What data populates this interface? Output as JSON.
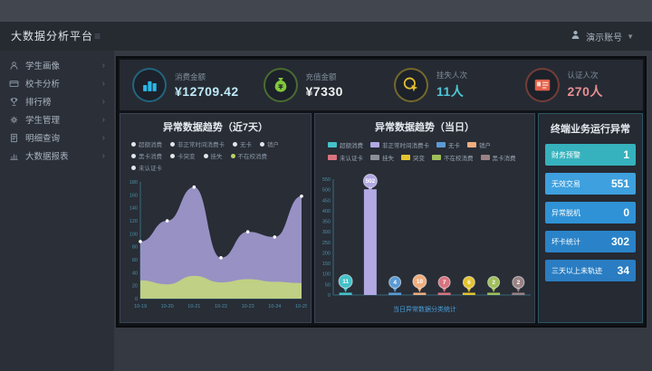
{
  "header": {
    "user_name": "演示账号"
  },
  "sidebar": {
    "title": "大数据分析平台",
    "items": [
      {
        "label": "学生画像",
        "icon": "person"
      },
      {
        "label": "校卡分析",
        "icon": "card"
      },
      {
        "label": "排行榜",
        "icon": "trophy"
      },
      {
        "label": "学生管理",
        "icon": "gear"
      },
      {
        "label": "明细查询",
        "icon": "doc"
      },
      {
        "label": "大数据报表",
        "icon": "chart"
      }
    ]
  },
  "kpis": [
    {
      "label": "消费金额",
      "value": "¥12709.42",
      "icon": "coins",
      "icon_color": "#2bb8e8",
      "value_color": "#bfe9f8"
    },
    {
      "label": "充值金额",
      "value": "¥7330",
      "icon": "moneybag",
      "icon_color": "#82c83a",
      "value_color": "#eef3f0"
    },
    {
      "label": "挂失人次",
      "value": "11人",
      "icon": "click",
      "icon_color": "#e2be2e",
      "value_color": "#4fc8d8"
    },
    {
      "label": "认证人次",
      "value": "270人",
      "icon": "idcard",
      "icon_color": "#e2604a",
      "value_color": "#e88f93"
    }
  ],
  "panels": {
    "trend7": {
      "title": "异常数据趋势（近7天）",
      "legend_rows": [
        [
          {
            "label": "超额消费"
          },
          {
            "label": "非正常时间消费卡"
          },
          {
            "label": "无卡"
          },
          {
            "label": "销户"
          }
        ],
        [
          {
            "label": "黑卡消费"
          },
          {
            "label": "卡突变"
          },
          {
            "label": "挂失"
          },
          {
            "label": "不在校消费",
            "dot": "#b9d36a"
          }
        ],
        [
          {
            "label": "未认证卡"
          }
        ]
      ]
    },
    "today": {
      "title": "异常数据趋势（当日）",
      "caption": "当日异常数据分类统计"
    },
    "terminal": {
      "title": "终端业务运行异常",
      "rows": [
        {
          "label": "财务预警",
          "value": "1",
          "color": "#35b2bd"
        },
        {
          "label": "无效交易",
          "value": "551",
          "color": "#3ea0de"
        },
        {
          "label": "异常脱机",
          "value": "0",
          "color": "#2f92d6"
        },
        {
          "label": "坏卡统计",
          "value": "302",
          "color": "#2a83c8"
        },
        {
          "label": "三天以上未轨迹",
          "value": "34",
          "color": "#2a7dc2"
        }
      ]
    }
  },
  "chart_data": [
    {
      "type": "area",
      "title": "异常数据趋势（近7天）",
      "x": [
        "10-19",
        "10-20",
        "10-21",
        "10-22",
        "10-23",
        "10-24",
        "10-25"
      ],
      "series": [
        {
          "name": "非正常时间消费卡",
          "values": [
            88,
            120,
            172,
            63,
            103,
            95,
            158
          ],
          "color": "#a79fd8",
          "opacity": 0.88
        },
        {
          "name": "不在校消费",
          "values": [
            28,
            22,
            35,
            25,
            30,
            26,
            24
          ],
          "color": "#c3d67e",
          "opacity": 0.92
        }
      ],
      "ylim": [
        0,
        180
      ],
      "ytick": 20,
      "grid": false,
      "legend_position": "top"
    },
    {
      "type": "bar",
      "title": "异常数据趋势（当日）",
      "categories": [
        "超额消费",
        "非正常时间消费卡",
        "无卡",
        "销户",
        "未认证卡",
        "挂失",
        "突变",
        "不在校消费",
        "黑卡消费"
      ],
      "values": [
        11,
        502,
        4,
        10,
        7,
        0,
        6,
        2,
        2
      ],
      "colors": [
        "#45c1c9",
        "#b2a8e3",
        "#5b9bd5",
        "#f0ad7e",
        "#d9737f",
        "#8a8f98",
        "#e3c430",
        "#9fbf5a",
        "#9a8285"
      ],
      "ylim": [
        0,
        550
      ],
      "ytick": 50,
      "grid": false,
      "legend_position": "top"
    }
  ]
}
